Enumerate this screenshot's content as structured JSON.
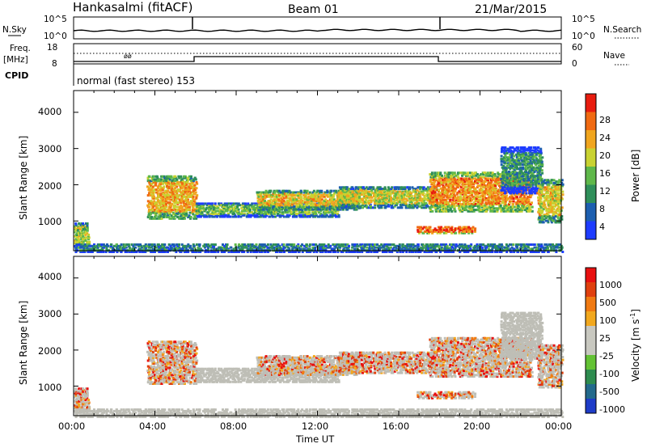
{
  "header": {
    "station": "Hankasalmi (fitACF)",
    "beam": "Beam 01",
    "date": "21/Mar/2015"
  },
  "top_panels": {
    "nsky_label": "N.Sky",
    "nsearch_label": "N.Search",
    "freq_label": "Freq.",
    "freq_unit": "[MHz]",
    "cpid_label": "CPID",
    "nave_label": "Nave",
    "noise_ticks": [
      "10^5",
      "10^0"
    ],
    "freq_ticks": [
      "18",
      "8"
    ],
    "nave_ticks": [
      "60",
      "0"
    ],
    "cpid_text": "normal (fast stereo) 153"
  },
  "x_axis": {
    "label": "Time UT",
    "ticks": [
      "00:00",
      "04:00",
      "08:00",
      "12:00",
      "16:00",
      "20:00",
      "00:00"
    ]
  },
  "panels": {
    "power": {
      "ylabel": "Slant Range [km]",
      "yticks": [
        "4000",
        "3000",
        "2000",
        "1000"
      ],
      "cbar_label": "Power [dB]",
      "cbar_ticks": [
        "28",
        "24",
        "20",
        "16",
        "12",
        "8",
        "4"
      ]
    },
    "velocity": {
      "ylabel": "Slant Range [km]",
      "yticks": [
        "4000",
        "3000",
        "2000",
        "1000"
      ],
      "cbar_label": "Velocity [m s",
      "cbar_label_sup": "-1",
      "cbar_label_end": "]",
      "cbar_ticks": [
        "1000",
        "500",
        "100",
        "25",
        "-25",
        "-100",
        "-500",
        "-1000"
      ]
    }
  },
  "colors": {
    "power_scale": [
      "#1e3cff",
      "#1d5fb0",
      "#2f8f5a",
      "#5fb84a",
      "#c9d231",
      "#f0a51e",
      "#f06a12",
      "#e81c0f"
    ],
    "velocity_scale": [
      "#1e3cc8",
      "#236a8c",
      "#2e8c4f",
      "#63c234",
      "#c8c8c0",
      "#c8c8c0",
      "#f2a81e",
      "#f07a12",
      "#e0400e",
      "#e81010"
    ],
    "ground_scatter": "#bebeb6"
  },
  "chart_data": {
    "type": "heatmap",
    "x_range_hours": [
      0,
      24
    ],
    "y_range_km": [
      180,
      4600
    ],
    "power_range_db": [
      0,
      32
    ],
    "velocity_range_ms": [
      -1200,
      1200
    ],
    "backscatter_bands": [
      {
        "t0": 3.6,
        "t1": 6.0,
        "r0": 1100,
        "r1": 2300,
        "power": 22
      },
      {
        "t0": 6.0,
        "t1": 13.0,
        "r0": 1150,
        "r1": 1550,
        "power": 14
      },
      {
        "t0": 9.0,
        "t1": 14.0,
        "r0": 1350,
        "r1": 1900,
        "power": 20
      },
      {
        "t0": 13.0,
        "t1": 17.8,
        "r0": 1400,
        "r1": 2000,
        "power": 18
      },
      {
        "t0": 17.5,
        "t1": 22.5,
        "r0": 1300,
        "r1": 2400,
        "power": 24
      },
      {
        "t0": 21.0,
        "t1": 23.0,
        "r0": 1800,
        "r1": 3100,
        "power": 10
      },
      {
        "t0": 16.9,
        "t1": 19.7,
        "r0": 700,
        "r1": 900,
        "power": 26
      },
      {
        "t0": 22.8,
        "t1": 24.0,
        "r0": 1000,
        "r1": 2200,
        "power": 20
      },
      {
        "t0": 0.0,
        "t1": 0.7,
        "r0": 300,
        "r1": 1000,
        "power": 16
      },
      {
        "t0": 0.0,
        "t1": 24.0,
        "r0": 180,
        "r1": 420,
        "power": 8
      }
    ]
  }
}
